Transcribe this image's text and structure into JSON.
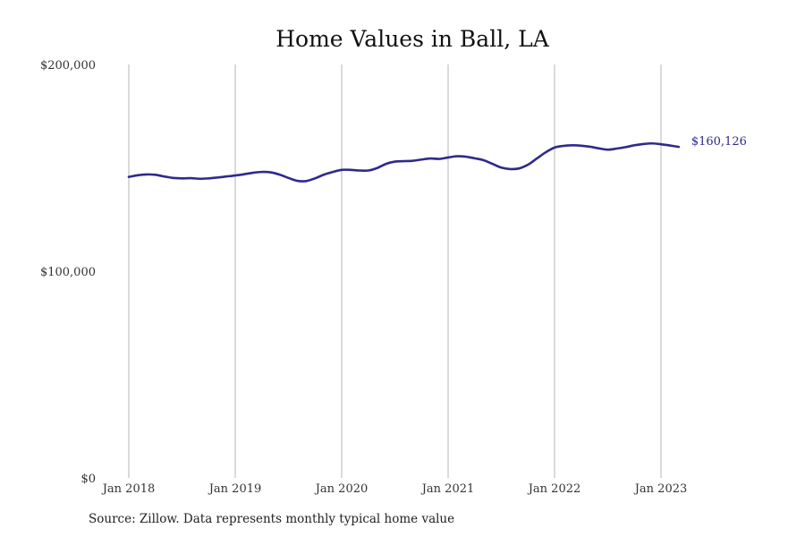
{
  "chart_data": {
    "type": "line",
    "title": "Home Values in Ball, LA",
    "xlabel": "",
    "ylabel": "",
    "ylim": [
      0,
      200000
    ],
    "y_ticks": [
      {
        "value": 0,
        "label": "$0"
      },
      {
        "value": 100000,
        "label": "$100,000"
      },
      {
        "value": 200000,
        "label": "$200,000"
      }
    ],
    "x_ticks": [
      {
        "value": "2018-01",
        "label": "Jan 2018"
      },
      {
        "value": "2019-01",
        "label": "Jan 2019"
      },
      {
        "value": "2020-01",
        "label": "Jan 2020"
      },
      {
        "value": "2021-01",
        "label": "Jan 2021"
      },
      {
        "value": "2022-01",
        "label": "Jan 2022"
      },
      {
        "value": "2023-01",
        "label": "Jan 2023"
      }
    ],
    "grid": "vertical",
    "series": [
      {
        "color": "#2e2a8c",
        "end_label": "$160,126",
        "points": [
          {
            "x": "2018-01",
            "y": 145600
          },
          {
            "x": "2018-02",
            "y": 146400
          },
          {
            "x": "2018-03",
            "y": 146800
          },
          {
            "x": "2018-04",
            "y": 146600
          },
          {
            "x": "2018-05",
            "y": 145800
          },
          {
            "x": "2018-06",
            "y": 145100
          },
          {
            "x": "2018-07",
            "y": 144900
          },
          {
            "x": "2018-08",
            "y": 145000
          },
          {
            "x": "2018-09",
            "y": 144700
          },
          {
            "x": "2018-10",
            "y": 144900
          },
          {
            "x": "2018-11",
            "y": 145300
          },
          {
            "x": "2018-12",
            "y": 145800
          },
          {
            "x": "2019-01",
            "y": 146300
          },
          {
            "x": "2019-02",
            "y": 146900
          },
          {
            "x": "2019-03",
            "y": 147600
          },
          {
            "x": "2019-04",
            "y": 148000
          },
          {
            "x": "2019-05",
            "y": 147800
          },
          {
            "x": "2019-06",
            "y": 146700
          },
          {
            "x": "2019-07",
            "y": 145100
          },
          {
            "x": "2019-08",
            "y": 143700
          },
          {
            "x": "2019-09",
            "y": 143600
          },
          {
            "x": "2019-10",
            "y": 144900
          },
          {
            "x": "2019-11",
            "y": 146700
          },
          {
            "x": "2019-12",
            "y": 148000
          },
          {
            "x": "2020-01",
            "y": 149000
          },
          {
            "x": "2020-02",
            "y": 149000
          },
          {
            "x": "2020-03",
            "y": 148700
          },
          {
            "x": "2020-04",
            "y": 148700
          },
          {
            "x": "2020-05",
            "y": 149900
          },
          {
            "x": "2020-06",
            "y": 151900
          },
          {
            "x": "2020-07",
            "y": 153000
          },
          {
            "x": "2020-08",
            "y": 153200
          },
          {
            "x": "2020-09",
            "y": 153400
          },
          {
            "x": "2020-10",
            "y": 154000
          },
          {
            "x": "2020-11",
            "y": 154500
          },
          {
            "x": "2020-12",
            "y": 154300
          },
          {
            "x": "2021-01",
            "y": 155000
          },
          {
            "x": "2021-02",
            "y": 155600
          },
          {
            "x": "2021-03",
            "y": 155400
          },
          {
            "x": "2021-04",
            "y": 154600
          },
          {
            "x": "2021-05",
            "y": 153700
          },
          {
            "x": "2021-06",
            "y": 151900
          },
          {
            "x": "2021-07",
            "y": 150100
          },
          {
            "x": "2021-08",
            "y": 149400
          },
          {
            "x": "2021-09",
            "y": 149700
          },
          {
            "x": "2021-10",
            "y": 151500
          },
          {
            "x": "2021-11",
            "y": 154500
          },
          {
            "x": "2021-12",
            "y": 157500
          },
          {
            "x": "2022-01",
            "y": 159800
          },
          {
            "x": "2022-02",
            "y": 160600
          },
          {
            "x": "2022-03",
            "y": 160900
          },
          {
            "x": "2022-04",
            "y": 160700
          },
          {
            "x": "2022-05",
            "y": 160200
          },
          {
            "x": "2022-06",
            "y": 159400
          },
          {
            "x": "2022-07",
            "y": 158800
          },
          {
            "x": "2022-08",
            "y": 159300
          },
          {
            "x": "2022-09",
            "y": 160000
          },
          {
            "x": "2022-10",
            "y": 160900
          },
          {
            "x": "2022-11",
            "y": 161500
          },
          {
            "x": "2022-12",
            "y": 161800
          },
          {
            "x": "2023-01",
            "y": 161400
          },
          {
            "x": "2023-02",
            "y": 160800
          },
          {
            "x": "2023-03",
            "y": 160126
          }
        ]
      }
    ]
  },
  "footer": {
    "source": "Source: Zillow. Data represents monthly typical home value"
  }
}
